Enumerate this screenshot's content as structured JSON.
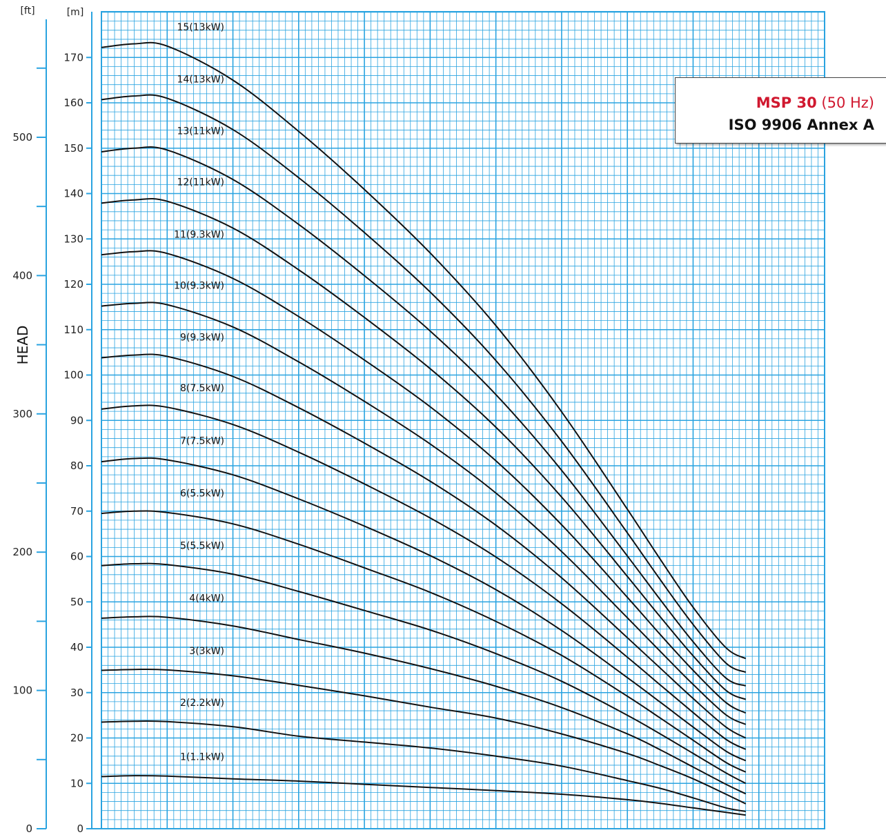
{
  "title": {
    "model": "MSP 30",
    "frequency": "(50 Hz)",
    "standard": "ISO 9906 Annex A"
  },
  "colors": {
    "grid": "#29a3e0",
    "axis": "#29a3e0",
    "curve": "#111111",
    "accent": "#d0182f"
  },
  "chart_data": {
    "type": "line",
    "title": "MSP 30 (50 Hz) ISO 9906 Annex A",
    "ylabel": "HEAD",
    "y_unit_primary": "[m]",
    "y_unit_secondary": "[ft]",
    "ylim": [
      0,
      180
    ],
    "y_ticks": [
      "0",
      "10",
      "20",
      "30",
      "40",
      "50",
      "60",
      "70",
      "80",
      "90",
      "100",
      "110",
      "120",
      "130",
      "140",
      "150",
      "160",
      "170"
    ],
    "ft_ticks": [
      "0",
      "100",
      "200",
      "300",
      "400",
      "500"
    ],
    "xlabel": "",
    "grid": true,
    "x": [
      0,
      5,
      10,
      20,
      30,
      40,
      50,
      60,
      70,
      80,
      85,
      90,
      95,
      98
    ],
    "series": [
      {
        "name": "1(1.1kW)",
        "values": [
          11.5,
          11.7,
          11.6,
          11.0,
          10.5,
          9.8,
          9.1,
          8.4,
          7.6,
          6.4,
          5.6,
          4.6,
          3.6,
          3.0
        ]
      },
      {
        "name": "2(2.2kW)",
        "values": [
          23.5,
          23.7,
          23.6,
          22.5,
          20.4,
          19.1,
          17.8,
          16.0,
          13.8,
          10.6,
          8.9,
          6.8,
          4.6,
          3.8
        ]
      },
      {
        "name": "3(3kW)",
        "values": [
          34.9,
          35.1,
          35.0,
          33.7,
          31.6,
          29.3,
          26.8,
          24.4,
          20.9,
          16.6,
          13.9,
          11.0,
          7.6,
          5.5
        ]
      },
      {
        "name": "4(4kW)",
        "values": [
          46.4,
          46.7,
          46.6,
          44.7,
          41.7,
          38.7,
          35.3,
          31.4,
          26.7,
          20.9,
          17.4,
          13.6,
          9.8,
          7.7
        ]
      },
      {
        "name": "5(5.5kW)",
        "values": [
          58.0,
          58.4,
          58.2,
          56.1,
          52.3,
          48.1,
          43.8,
          38.6,
          32.5,
          25.0,
          20.9,
          16.6,
          12.3,
          10.0
        ]
      },
      {
        "name": "6(5.5kW)",
        "values": [
          69.5,
          70.0,
          69.7,
          67.2,
          62.7,
          57.5,
          52.1,
          45.7,
          38.2,
          29.2,
          24.4,
          19.5,
          14.6,
          12.5
        ]
      },
      {
        "name": "7(7.5kW)",
        "values": [
          80.9,
          81.6,
          81.3,
          78.0,
          72.7,
          66.7,
          60.2,
          52.7,
          43.7,
          33.3,
          27.9,
          22.4,
          17.1,
          15.0
        ]
      },
      {
        "name": "8(7.5kW)",
        "values": [
          92.5,
          93.2,
          92.9,
          89.1,
          83.0,
          76.0,
          68.5,
          59.9,
          49.6,
          37.8,
          31.7,
          25.6,
          19.7,
          17.5
        ]
      },
      {
        "name": "9(9.3kW)",
        "values": [
          103.8,
          104.4,
          104.1,
          99.7,
          92.8,
          85.0,
          76.6,
          66.9,
          55.3,
          42.1,
          35.4,
          28.7,
          22.4,
          20.0
        ]
      },
      {
        "name": "10(9.3kW)",
        "values": [
          115.2,
          115.8,
          115.5,
          110.6,
          102.9,
          94.2,
          84.8,
          74.0,
          61.1,
          46.5,
          39.1,
          31.8,
          25.1,
          23.0
        ]
      },
      {
        "name": "11(9.3kW)",
        "values": [
          126.5,
          127.2,
          126.8,
          121.3,
          112.9,
          103.3,
          93.0,
          81.1,
          67.0,
          51.0,
          42.8,
          34.9,
          27.8,
          25.5
        ]
      },
      {
        "name": "12(11kW)",
        "values": [
          137.9,
          138.6,
          138.3,
          132.4,
          123.2,
          112.7,
          101.4,
          88.5,
          73.1,
          55.6,
          46.7,
          38.1,
          30.5,
          28.5
        ]
      },
      {
        "name": "13(11kW)",
        "values": [
          149.2,
          150.0,
          149.6,
          143.1,
          133.2,
          121.9,
          109.7,
          95.7,
          79.0,
          60.1,
          50.5,
          41.2,
          33.2,
          31.5
        ]
      },
      {
        "name": "14(13kW)",
        "values": [
          160.7,
          161.5,
          161.0,
          154.1,
          143.5,
          131.4,
          118.3,
          103.2,
          85.4,
          65.2,
          54.9,
          45.0,
          36.5,
          34.5
        ]
      },
      {
        "name": "15(13kW)",
        "values": [
          172.2,
          173.0,
          172.5,
          165.0,
          153.7,
          140.9,
          126.9,
          110.9,
          91.9,
          70.4,
          59.4,
          48.8,
          39.9,
          37.5
        ]
      }
    ]
  }
}
